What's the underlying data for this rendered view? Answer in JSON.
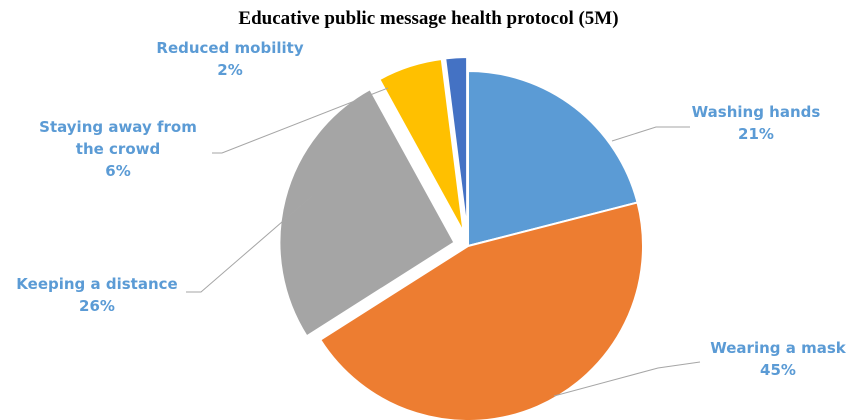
{
  "chart_data": {
    "type": "pie",
    "title": "Educative public message health protocol (5M)",
    "slices": [
      {
        "name": "Washing hands",
        "label_lines": [
          "Washing hands"
        ],
        "value": 21,
        "value_label": "21%",
        "color": "#5B9BD5",
        "exploded": false
      },
      {
        "name": "Wearing a mask",
        "label_lines": [
          "Wearing a mask"
        ],
        "value": 45,
        "value_label": "45%",
        "color": "#ED7D31",
        "exploded": false
      },
      {
        "name": "Keeping a distance",
        "label_lines": [
          "Keeping a distance"
        ],
        "value": 26,
        "value_label": "26%",
        "color": "#A5A5A5",
        "exploded": true
      },
      {
        "name": "Staying away from the crowd",
        "label_lines": [
          "Staying away from",
          "the crowd"
        ],
        "value": 6,
        "value_label": "6%",
        "color": "#FFC000",
        "exploded": true
      },
      {
        "name": "Reduced mobility",
        "label_lines": [
          "Reduced mobility"
        ],
        "value": 2,
        "value_label": "2%",
        "color": "#4472C4",
        "exploded": true
      }
    ],
    "label_color": "#5B9BD5",
    "leader_line_color": "#A6A6A6",
    "legend": "none"
  }
}
